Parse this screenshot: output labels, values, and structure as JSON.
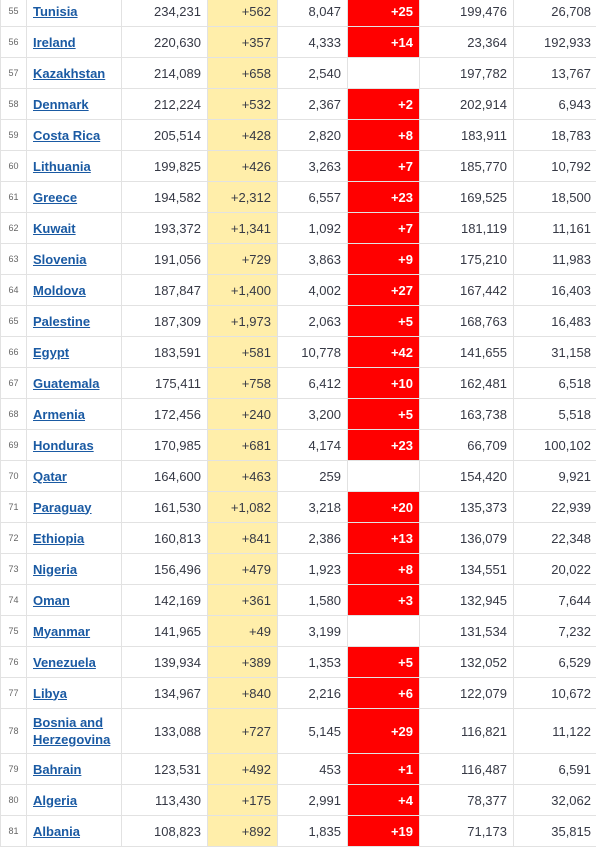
{
  "table": {
    "rows": [
      {
        "rank": "55",
        "country": "Tunisia",
        "total_cases": "234,231",
        "new_cases": "+562",
        "total_deaths": "8,047",
        "new_deaths": "+25",
        "total_recovered": "199,476",
        "active_cases": "26,708"
      },
      {
        "rank": "56",
        "country": "Ireland",
        "total_cases": "220,630",
        "new_cases": "+357",
        "total_deaths": "4,333",
        "new_deaths": "+14",
        "total_recovered": "23,364",
        "active_cases": "192,933"
      },
      {
        "rank": "57",
        "country": "Kazakhstan",
        "total_cases": "214,089",
        "new_cases": "+658",
        "total_deaths": "2,540",
        "new_deaths": "",
        "total_recovered": "197,782",
        "active_cases": "13,767"
      },
      {
        "rank": "58",
        "country": "Denmark",
        "total_cases": "212,224",
        "new_cases": "+532",
        "total_deaths": "2,367",
        "new_deaths": "+2",
        "total_recovered": "202,914",
        "active_cases": "6,943"
      },
      {
        "rank": "59",
        "country": "Costa Rica",
        "total_cases": "205,514",
        "new_cases": "+428",
        "total_deaths": "2,820",
        "new_deaths": "+8",
        "total_recovered": "183,911",
        "active_cases": "18,783"
      },
      {
        "rank": "60",
        "country": "Lithuania",
        "total_cases": "199,825",
        "new_cases": "+426",
        "total_deaths": "3,263",
        "new_deaths": "+7",
        "total_recovered": "185,770",
        "active_cases": "10,792"
      },
      {
        "rank": "61",
        "country": "Greece",
        "total_cases": "194,582",
        "new_cases": "+2,312",
        "total_deaths": "6,557",
        "new_deaths": "+23",
        "total_recovered": "169,525",
        "active_cases": "18,500"
      },
      {
        "rank": "62",
        "country": "Kuwait",
        "total_cases": "193,372",
        "new_cases": "+1,341",
        "total_deaths": "1,092",
        "new_deaths": "+7",
        "total_recovered": "181,119",
        "active_cases": "11,161"
      },
      {
        "rank": "63",
        "country": "Slovenia",
        "total_cases": "191,056",
        "new_cases": "+729",
        "total_deaths": "3,863",
        "new_deaths": "+9",
        "total_recovered": "175,210",
        "active_cases": "11,983"
      },
      {
        "rank": "64",
        "country": "Moldova",
        "total_cases": "187,847",
        "new_cases": "+1,400",
        "total_deaths": "4,002",
        "new_deaths": "+27",
        "total_recovered": "167,442",
        "active_cases": "16,403"
      },
      {
        "rank": "65",
        "country": "Palestine",
        "total_cases": "187,309",
        "new_cases": "+1,973",
        "total_deaths": "2,063",
        "new_deaths": "+5",
        "total_recovered": "168,763",
        "active_cases": "16,483"
      },
      {
        "rank": "66",
        "country": "Egypt",
        "total_cases": "183,591",
        "new_cases": "+581",
        "total_deaths": "10,778",
        "new_deaths": "+42",
        "total_recovered": "141,655",
        "active_cases": "31,158"
      },
      {
        "rank": "67",
        "country": "Guatemala",
        "total_cases": "175,411",
        "new_cases": "+758",
        "total_deaths": "6,412",
        "new_deaths": "+10",
        "total_recovered": "162,481",
        "active_cases": "6,518"
      },
      {
        "rank": "68",
        "country": "Armenia",
        "total_cases": "172,456",
        "new_cases": "+240",
        "total_deaths": "3,200",
        "new_deaths": "+5",
        "total_recovered": "163,738",
        "active_cases": "5,518"
      },
      {
        "rank": "69",
        "country": "Honduras",
        "total_cases": "170,985",
        "new_cases": "+681",
        "total_deaths": "4,174",
        "new_deaths": "+23",
        "total_recovered": "66,709",
        "active_cases": "100,102"
      },
      {
        "rank": "70",
        "country": "Qatar",
        "total_cases": "164,600",
        "new_cases": "+463",
        "total_deaths": "259",
        "new_deaths": "",
        "total_recovered": "154,420",
        "active_cases": "9,921"
      },
      {
        "rank": "71",
        "country": "Paraguay",
        "total_cases": "161,530",
        "new_cases": "+1,082",
        "total_deaths": "3,218",
        "new_deaths": "+20",
        "total_recovered": "135,373",
        "active_cases": "22,939"
      },
      {
        "rank": "72",
        "country": "Ethiopia",
        "total_cases": "160,813",
        "new_cases": "+841",
        "total_deaths": "2,386",
        "new_deaths": "+13",
        "total_recovered": "136,079",
        "active_cases": "22,348"
      },
      {
        "rank": "73",
        "country": "Nigeria",
        "total_cases": "156,496",
        "new_cases": "+479",
        "total_deaths": "1,923",
        "new_deaths": "+8",
        "total_recovered": "134,551",
        "active_cases": "20,022"
      },
      {
        "rank": "74",
        "country": "Oman",
        "total_cases": "142,169",
        "new_cases": "+361",
        "total_deaths": "1,580",
        "new_deaths": "+3",
        "total_recovered": "132,945",
        "active_cases": "7,644"
      },
      {
        "rank": "75",
        "country": "Myanmar",
        "total_cases": "141,965",
        "new_cases": "+49",
        "total_deaths": "3,199",
        "new_deaths": "",
        "total_recovered": "131,534",
        "active_cases": "7,232"
      },
      {
        "rank": "76",
        "country": "Venezuela",
        "total_cases": "139,934",
        "new_cases": "+389",
        "total_deaths": "1,353",
        "new_deaths": "+5",
        "total_recovered": "132,052",
        "active_cases": "6,529"
      },
      {
        "rank": "77",
        "country": "Libya",
        "total_cases": "134,967",
        "new_cases": "+840",
        "total_deaths": "2,216",
        "new_deaths": "+6",
        "total_recovered": "122,079",
        "active_cases": "10,672"
      },
      {
        "rank": "78",
        "country": "Bosnia and Herzegovina",
        "total_cases": "133,088",
        "new_cases": "+727",
        "total_deaths": "5,145",
        "new_deaths": "+29",
        "total_recovered": "116,821",
        "active_cases": "11,122"
      },
      {
        "rank": "79",
        "country": "Bahrain",
        "total_cases": "123,531",
        "new_cases": "+492",
        "total_deaths": "453",
        "new_deaths": "+1",
        "total_recovered": "116,487",
        "active_cases": "6,591"
      },
      {
        "rank": "80",
        "country": "Algeria",
        "total_cases": "113,430",
        "new_cases": "+175",
        "total_deaths": "2,991",
        "new_deaths": "+4",
        "total_recovered": "78,377",
        "active_cases": "32,062"
      },
      {
        "rank": "81",
        "country": "Albania",
        "total_cases": "108,823",
        "new_cases": "+892",
        "total_deaths": "1,835",
        "new_deaths": "+19",
        "total_recovered": "71,173",
        "active_cases": "35,815"
      }
    ]
  },
  "colors": {
    "new_cases_bg": "#ffeeaa",
    "new_deaths_bg": "#ff0000",
    "link": "#1a5aa3"
  }
}
